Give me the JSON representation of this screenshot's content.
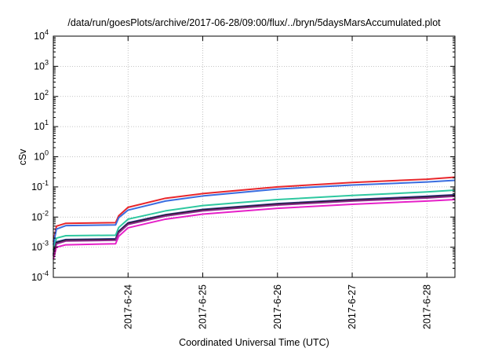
{
  "chart_data": {
    "type": "line",
    "title": "/data/run/goesPlots/archive/2017-06-28/09:00/flux/../bryn/5daysMarsAccumulated.plot",
    "xlabel": "Coordinated Universal Time (UTC)",
    "ylabel": "cSv",
    "y_scale": "log",
    "ylim": [
      0.0001,
      10000
    ],
    "xlim": [
      "2017-06-23T00:00",
      "2017-06-28T09:00"
    ],
    "grid": true,
    "x_ticks": [
      "2017-6-24",
      "2017-6-25",
      "2017-6-26",
      "2017-6-27",
      "2017-6-28"
    ],
    "y_ticks": [
      {
        "value": 0.0001,
        "base": "10",
        "exp": "-4"
      },
      {
        "value": 0.001,
        "base": "10",
        "exp": "-3"
      },
      {
        "value": 0.01,
        "base": "10",
        "exp": "-2"
      },
      {
        "value": 0.1,
        "base": "10",
        "exp": "-1"
      },
      {
        "value": 1,
        "base": "10",
        "exp": "0"
      },
      {
        "value": 10,
        "base": "10",
        "exp": "1"
      },
      {
        "value": 100,
        "base": "10",
        "exp": "2"
      },
      {
        "value": 1000,
        "base": "10",
        "exp": "3"
      },
      {
        "value": 10000,
        "base": "10",
        "exp": "4"
      }
    ],
    "series": [
      {
        "color": "#e8262b",
        "x": [
          "2017-06-23T00:00",
          "2017-06-23T01:00",
          "2017-06-23T04:00",
          "2017-06-23T20:00",
          "2017-06-23T21:00",
          "2017-06-24T00:00",
          "2017-06-24T12:00",
          "2017-06-25T00:00",
          "2017-06-26T00:00",
          "2017-06-27T00:00",
          "2017-06-28T00:00",
          "2017-06-28T09:00"
        ],
        "values": [
          0.0015,
          0.005,
          0.0062,
          0.0065,
          0.011,
          0.021,
          0.042,
          0.06,
          0.1,
          0.14,
          0.18,
          0.21
        ]
      },
      {
        "color": "#3a6de0",
        "x": [
          "2017-06-23T00:00",
          "2017-06-23T01:00",
          "2017-06-23T04:00",
          "2017-06-23T20:00",
          "2017-06-23T21:00",
          "2017-06-24T00:00",
          "2017-06-24T12:00",
          "2017-06-25T00:00",
          "2017-06-26T00:00",
          "2017-06-27T00:00",
          "2017-06-28T00:00",
          "2017-06-28T09:00"
        ],
        "values": [
          0.0012,
          0.004,
          0.0052,
          0.0055,
          0.0095,
          0.017,
          0.034,
          0.05,
          0.085,
          0.115,
          0.145,
          0.165
        ]
      },
      {
        "color": "#2ec8a0",
        "x": [
          "2017-06-23T00:00",
          "2017-06-23T01:00",
          "2017-06-23T04:00",
          "2017-06-23T20:00",
          "2017-06-23T21:00",
          "2017-06-24T00:00",
          "2017-06-24T12:00",
          "2017-06-25T00:00",
          "2017-06-26T00:00",
          "2017-06-27T00:00",
          "2017-06-28T00:00",
          "2017-06-28T09:00"
        ],
        "values": [
          0.0008,
          0.002,
          0.0024,
          0.0025,
          0.0045,
          0.0085,
          0.016,
          0.024,
          0.038,
          0.052,
          0.068,
          0.078
        ]
      },
      {
        "color": "#3a3a9a",
        "x": [
          "2017-06-23T00:00",
          "2017-06-23T01:00",
          "2017-06-23T04:00",
          "2017-06-23T20:00",
          "2017-06-23T21:00",
          "2017-06-24T00:00",
          "2017-06-24T12:00",
          "2017-06-25T00:00",
          "2017-06-26T00:00",
          "2017-06-27T00:00",
          "2017-06-28T00:00",
          "2017-06-28T09:00"
        ],
        "values": [
          0.0006,
          0.0015,
          0.0018,
          0.0019,
          0.0034,
          0.0065,
          0.012,
          0.018,
          0.028,
          0.038,
          0.049,
          0.055
        ]
      },
      {
        "color": "#1a1a1a",
        "x": [
          "2017-06-23T00:00",
          "2017-06-23T01:00",
          "2017-06-23T04:00",
          "2017-06-23T20:00",
          "2017-06-23T21:00",
          "2017-06-24T00:00",
          "2017-06-24T12:00",
          "2017-06-25T00:00",
          "2017-06-26T00:00",
          "2017-06-27T00:00",
          "2017-06-28T00:00",
          "2017-06-28T09:00"
        ],
        "values": [
          0.00055,
          0.0014,
          0.0017,
          0.0018,
          0.0032,
          0.0061,
          0.0115,
          0.017,
          0.0265,
          0.036,
          0.046,
          0.052
        ]
      },
      {
        "color": "#8a2a8a",
        "x": [
          "2017-06-23T00:00",
          "2017-06-23T01:00",
          "2017-06-23T04:00",
          "2017-06-23T20:00",
          "2017-06-23T21:00",
          "2017-06-24T00:00",
          "2017-06-24T12:00",
          "2017-06-25T00:00",
          "2017-06-26T00:00",
          "2017-06-27T00:00",
          "2017-06-28T00:00",
          "2017-06-28T09:00"
        ],
        "values": [
          0.0005,
          0.0013,
          0.0016,
          0.0017,
          0.003,
          0.0057,
          0.0108,
          0.016,
          0.025,
          0.034,
          0.043,
          0.049
        ]
      },
      {
        "color": "#e620c8",
        "x": [
          "2017-06-23T00:00",
          "2017-06-23T01:00",
          "2017-06-23T04:00",
          "2017-06-23T20:00",
          "2017-06-23T21:00",
          "2017-06-24T00:00",
          "2017-06-24T12:00",
          "2017-06-25T00:00",
          "2017-06-26T00:00",
          "2017-06-27T00:00",
          "2017-06-28T00:00",
          "2017-06-28T09:00"
        ],
        "values": [
          0.0004,
          0.001,
          0.0012,
          0.0013,
          0.0023,
          0.0044,
          0.0085,
          0.0125,
          0.0195,
          0.0265,
          0.034,
          0.038
        ]
      }
    ]
  }
}
